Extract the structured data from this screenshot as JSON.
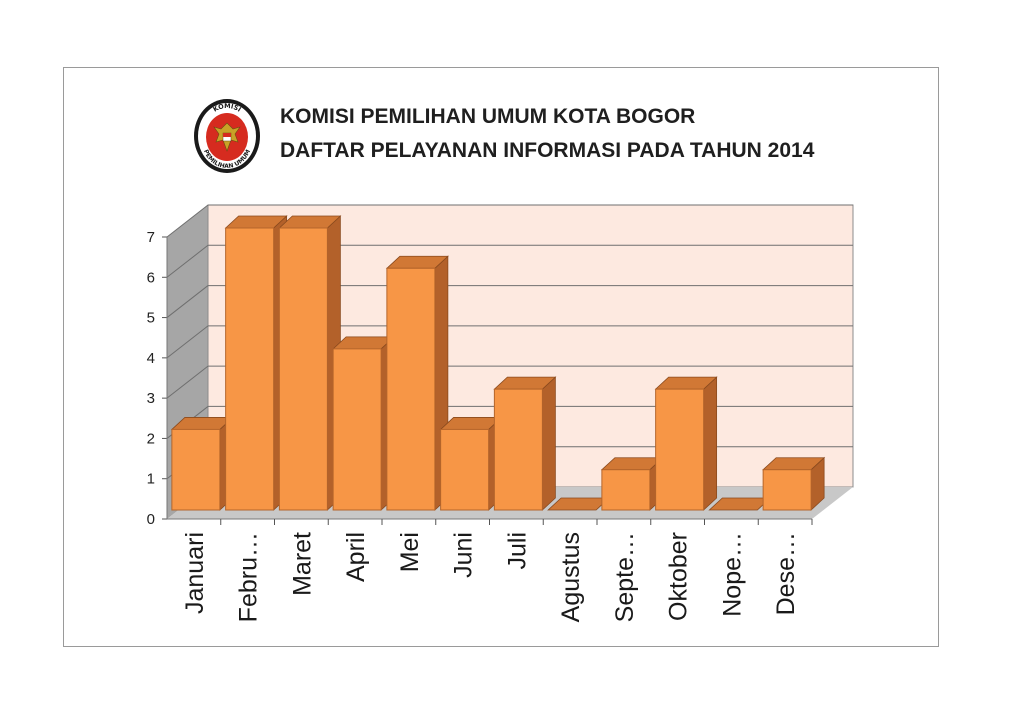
{
  "header": {
    "title_line1": "KOMISI PEMILIHAN UMUM KOTA BOGOR",
    "title_line2": "DAFTAR PELAYANAN INFORMASI PADA TAHUN 2014",
    "logo": {
      "text_top": "KOMISI",
      "text_bottom": "PEMILIHAN UMUM"
    }
  },
  "colors": {
    "bar_front": "#f79646",
    "bar_side": "#b3612a",
    "bar_top": "#d17835",
    "wall_back": "#fde9e0",
    "wall_side": "#a6a6a6",
    "floor": "#c8c8c8",
    "grid": "#6f6f6f"
  },
  "chart_data": {
    "type": "bar",
    "style": "3d-column",
    "categories": [
      "Januari",
      "Febru…",
      "Maret",
      "April",
      "Mei",
      "Juni",
      "Juli",
      "Agustus",
      "Septe…",
      "Oktober",
      "Nope…",
      "Dese…"
    ],
    "values": [
      2,
      7,
      7,
      4,
      6,
      2,
      3,
      0,
      1,
      3,
      0,
      1
    ],
    "ylim": [
      0,
      7
    ],
    "yticks": [
      "0",
      "1",
      "2",
      "3",
      "4",
      "5",
      "6",
      "7"
    ],
    "grid": true,
    "legend": "none",
    "title": "",
    "xlabel": "",
    "ylabel": ""
  }
}
